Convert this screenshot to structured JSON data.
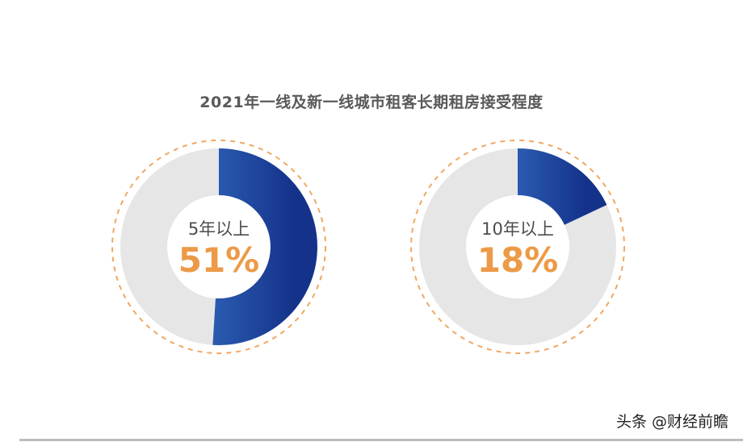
{
  "chart_data": {
    "type": "pie",
    "title": "2021年一线及新一线城市租客长期租房接受程度",
    "charts": [
      {
        "label": "5年以上",
        "value": 51,
        "display": "51%"
      },
      {
        "label": "10年以上",
        "value": 18,
        "display": "18%"
      }
    ]
  },
  "colors": {
    "fill_start": "#2a5bb0",
    "fill_end": "#15328a",
    "track": "#e6e6e6",
    "dash_ring": "#efa863",
    "value_text": "#ec9a47"
  },
  "watermark": "头条 @财经前瞻"
}
